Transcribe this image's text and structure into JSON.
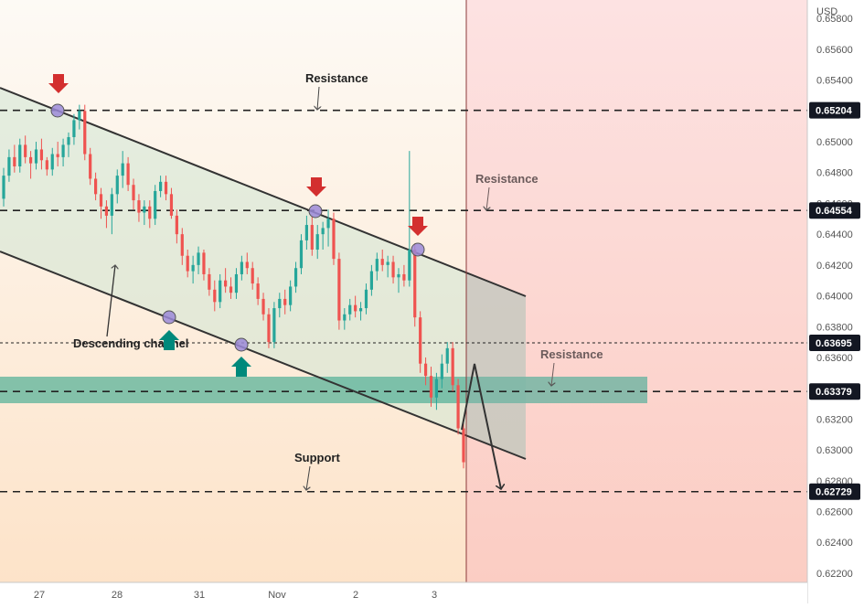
{
  "chart_data": {
    "type": "candlestick",
    "currency": "USD",
    "ylim": [
      0.6214,
      0.6592
    ],
    "y_ticks": [
      "0.65800",
      "0.65600",
      "0.65400",
      "0.65200",
      "0.65000",
      "0.64800",
      "0.64600",
      "0.64400",
      "0.64200",
      "0.64000",
      "0.63800",
      "0.63600",
      "0.63400",
      "0.63200",
      "0.63000",
      "0.62800",
      "0.62600",
      "0.62400",
      "0.62200"
    ],
    "y_tick_values": [
      0.658,
      0.656,
      0.654,
      0.652,
      0.65,
      0.648,
      0.646,
      0.644,
      0.642,
      0.64,
      0.638,
      0.636,
      0.634,
      0.632,
      0.63,
      0.628,
      0.626,
      0.624,
      0.622
    ],
    "x_ticks": [
      "27",
      "28",
      "31",
      "Nov",
      "2",
      "3"
    ],
    "price_levels": [
      {
        "label": "0.65204",
        "value": 0.65204,
        "style": "dashed",
        "annotation": "Resistance"
      },
      {
        "label": "0.64554",
        "value": 0.64554,
        "style": "dashed",
        "annotation": "Resistance"
      },
      {
        "label": "0.63695",
        "value": 0.63695,
        "style": "dotted",
        "annotation": ""
      },
      {
        "label": "0.63379",
        "value": 0.63379,
        "style": "dashed",
        "annotation": "Resistance"
      },
      {
        "label": "0.62729",
        "value": 0.62729,
        "style": "dashed",
        "annotation": "Support"
      }
    ],
    "annotations": {
      "channel": "Descending channel",
      "resistance": "Resistance",
      "support": "Support"
    },
    "channel_upper": [
      {
        "x": 0,
        "y": 0.6551
      },
      {
        "x": 1,
        "y": 0.64005
      }
    ],
    "channel_lower": [
      {
        "x": 0,
        "y": 0.64268
      },
      {
        "x": 1,
        "y": 0.6295
      }
    ],
    "support_zone": [
      0.6327,
      0.6346
    ],
    "up_color": "#26a69a",
    "down_color": "#ef5350",
    "colors": {
      "resistance_arrow": "#d32f2f",
      "support_arrow": "#00897b",
      "touch_point": "#9b8ad8",
      "zone": "#5ab39a",
      "future_bg": "#fdd5d5",
      "past_bg": "#fdf3ea"
    },
    "series": [
      {
        "values": [
          [
            0.6463,
            0.6483,
            0.6458,
            0.6478
          ],
          [
            0.6478,
            0.6495,
            0.6474,
            0.649
          ],
          [
            0.649,
            0.6498,
            0.648,
            0.6484
          ],
          [
            0.6484,
            0.6502,
            0.648,
            0.6498
          ],
          [
            0.6498,
            0.6504,
            0.6486,
            0.649
          ],
          [
            0.649,
            0.6494,
            0.6476,
            0.6486
          ],
          [
            0.6486,
            0.65,
            0.6482,
            0.6495
          ],
          [
            0.6495,
            0.6502,
            0.6482,
            0.6488
          ],
          [
            0.6488,
            0.649,
            0.6478,
            0.6482
          ],
          [
            0.6482,
            0.6496,
            0.6478,
            0.6492
          ],
          [
            0.6492,
            0.65,
            0.6484,
            0.649
          ],
          [
            0.649,
            0.6502,
            0.6484,
            0.6498
          ],
          [
            0.6498,
            0.6506,
            0.649,
            0.6503
          ],
          [
            0.6503,
            0.6518,
            0.6498,
            0.6514
          ],
          [
            0.6514,
            0.6524,
            0.6508,
            0.652
          ],
          [
            0.652,
            0.6524,
            0.6488,
            0.6492
          ],
          [
            0.6492,
            0.6496,
            0.6472,
            0.6476
          ],
          [
            0.6476,
            0.648,
            0.6462,
            0.6466
          ],
          [
            0.6466,
            0.647,
            0.645,
            0.6458
          ],
          [
            0.6458,
            0.6462,
            0.6444,
            0.6452
          ],
          [
            0.6452,
            0.647,
            0.644,
            0.6466
          ],
          [
            0.6466,
            0.6482,
            0.646,
            0.6478
          ],
          [
            0.6478,
            0.6494,
            0.647,
            0.6486
          ],
          [
            0.6486,
            0.649,
            0.6468,
            0.6472
          ],
          [
            0.6472,
            0.6476,
            0.6456,
            0.6462
          ],
          [
            0.6462,
            0.6466,
            0.6448,
            0.6454
          ],
          [
            0.6454,
            0.6462,
            0.6446,
            0.6458
          ],
          [
            0.6458,
            0.6462,
            0.6444,
            0.645
          ],
          [
            0.645,
            0.6472,
            0.6446,
            0.6468
          ],
          [
            0.6468,
            0.6478,
            0.6464,
            0.6474
          ],
          [
            0.6474,
            0.6478,
            0.6462,
            0.6466
          ],
          [
            0.6466,
            0.647,
            0.645,
            0.6452
          ],
          [
            0.6452,
            0.6456,
            0.6434,
            0.644
          ],
          [
            0.644,
            0.6444,
            0.642,
            0.6426
          ],
          [
            0.6426,
            0.643,
            0.6412,
            0.6416
          ],
          [
            0.6416,
            0.6426,
            0.6408,
            0.642
          ],
          [
            0.642,
            0.6432,
            0.6414,
            0.6428
          ],
          [
            0.6428,
            0.643,
            0.641,
            0.6414
          ],
          [
            0.6414,
            0.6418,
            0.64,
            0.6404
          ],
          [
            0.6404,
            0.641,
            0.639,
            0.6396
          ],
          [
            0.6396,
            0.6414,
            0.6392,
            0.641
          ],
          [
            0.641,
            0.6418,
            0.6402,
            0.6406
          ],
          [
            0.6406,
            0.6412,
            0.6398,
            0.6402
          ],
          [
            0.6402,
            0.6418,
            0.6398,
            0.6414
          ],
          [
            0.6414,
            0.6426,
            0.641,
            0.6422
          ],
          [
            0.6422,
            0.6428,
            0.6414,
            0.6418
          ],
          [
            0.6418,
            0.6422,
            0.6404,
            0.6408
          ],
          [
            0.6408,
            0.6412,
            0.6394,
            0.6398
          ],
          [
            0.6398,
            0.6402,
            0.6384,
            0.6388
          ],
          [
            0.6388,
            0.6392,
            0.6366,
            0.637
          ],
          [
            0.637,
            0.6396,
            0.6366,
            0.6392
          ],
          [
            0.6392,
            0.6402,
            0.6386,
            0.6398
          ],
          [
            0.6398,
            0.6404,
            0.6388,
            0.6394
          ],
          [
            0.6394,
            0.641,
            0.639,
            0.6406
          ],
          [
            0.6406,
            0.6422,
            0.6402,
            0.6418
          ],
          [
            0.6418,
            0.644,
            0.6414,
            0.6436
          ],
          [
            0.6436,
            0.6452,
            0.643,
            0.6446
          ],
          [
            0.6446,
            0.6452,
            0.6426,
            0.643
          ],
          [
            0.643,
            0.6446,
            0.6424,
            0.644
          ],
          [
            0.644,
            0.6448,
            0.643,
            0.6444
          ],
          [
            0.6444,
            0.6456,
            0.6432,
            0.645
          ],
          [
            0.645,
            0.6454,
            0.642,
            0.6424
          ],
          [
            0.6424,
            0.6428,
            0.6378,
            0.6384
          ],
          [
            0.6384,
            0.6392,
            0.6378,
            0.6388
          ],
          [
            0.6388,
            0.6398,
            0.6384,
            0.6394
          ],
          [
            0.6394,
            0.64,
            0.6386,
            0.639
          ],
          [
            0.639,
            0.6396,
            0.6384,
            0.6392
          ],
          [
            0.6392,
            0.6408,
            0.6388,
            0.6404
          ],
          [
            0.6404,
            0.642,
            0.64,
            0.6416
          ],
          [
            0.6416,
            0.6428,
            0.641,
            0.6424
          ],
          [
            0.6424,
            0.643,
            0.6416,
            0.642
          ],
          [
            0.642,
            0.6426,
            0.6412,
            0.6422
          ],
          [
            0.6422,
            0.6426,
            0.6408,
            0.6412
          ],
          [
            0.6412,
            0.6418,
            0.6402,
            0.6414
          ],
          [
            0.6414,
            0.642,
            0.6406,
            0.641
          ],
          [
            0.641,
            0.6494,
            0.6406,
            0.643
          ],
          [
            0.643,
            0.6434,
            0.638,
            0.6386
          ],
          [
            0.6386,
            0.639,
            0.635,
            0.6356
          ],
          [
            0.6356,
            0.636,
            0.6342,
            0.6348
          ],
          [
            0.6348,
            0.6354,
            0.6328,
            0.6334
          ],
          [
            0.6334,
            0.635,
            0.6326,
            0.6346
          ],
          [
            0.6346,
            0.6362,
            0.634,
            0.6356
          ],
          [
            0.6356,
            0.637,
            0.635,
            0.6366
          ],
          [
            0.6366,
            0.637,
            0.6338,
            0.6342
          ],
          [
            0.6342,
            0.6346,
            0.631,
            0.6314
          ],
          [
            0.6314,
            0.6318,
            0.6288,
            0.6292
          ]
        ]
      }
    ]
  }
}
